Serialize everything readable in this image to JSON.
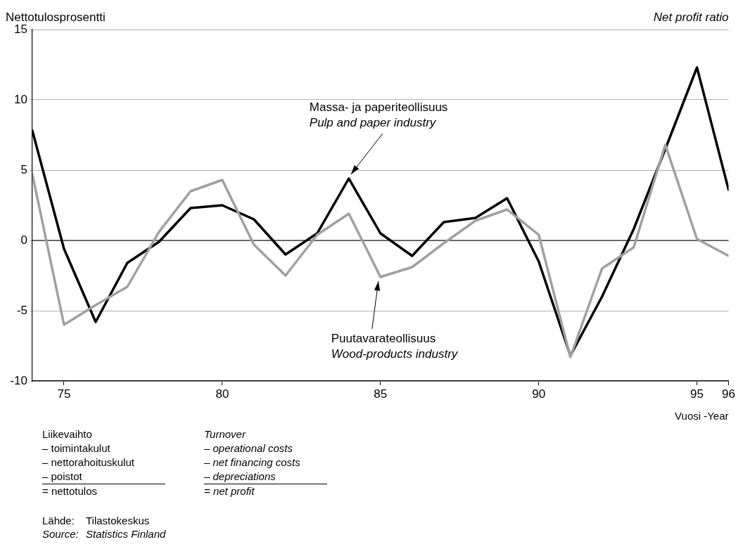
{
  "chart_data": {
    "type": "line",
    "ylabel": "Nettotulosprosentti",
    "xlabel": "Vuosi -Year",
    "x": [
      1974,
      1975,
      1976,
      1977,
      1978,
      1979,
      1980,
      1981,
      1982,
      1983,
      1984,
      1985,
      1986,
      1987,
      1988,
      1989,
      1990,
      1991,
      1992,
      1993,
      1994,
      1995,
      1996
    ],
    "series": [
      {
        "color": "#a0a0a0",
        "values": [
          4.7,
          -6.0,
          -4.6,
          -3.3,
          0.6,
          3.5,
          4.3,
          -0.3,
          -2.5,
          0.4,
          1.9,
          -2.6,
          -1.9,
          -0.2,
          1.4,
          2.2,
          0.4,
          -8.3,
          -2.0,
          -0.5,
          6.8,
          0.1,
          -1.1
        ]
      },
      {
        "color": "#000000",
        "values": [
          7.8,
          -0.6,
          -5.8,
          -1.6,
          -0.1,
          2.3,
          2.5,
          1.5,
          -1.0,
          0.5,
          4.4,
          0.5,
          -1.1,
          1.3,
          1.6,
          3.0,
          -1.5,
          -8.2,
          -4.0,
          0.8,
          6.5,
          12.3,
          3.6
        ]
      }
    ],
    "xlim": [
      1974,
      1996
    ],
    "xticks": [
      {
        "value": 1975,
        "label": "75"
      },
      {
        "value": 1980,
        "label": "80"
      },
      {
        "value": 1985,
        "label": "85"
      },
      {
        "value": 1990,
        "label": "90"
      },
      {
        "value": 1995,
        "label": "95"
      },
      {
        "value": 1996,
        "label": "96"
      }
    ],
    "ylim": [
      -10,
      15
    ],
    "yticks": [
      -10,
      -5,
      0,
      5,
      10,
      15
    ],
    "grid": "y",
    "legend": false,
    "marker": "none",
    "line_style": "solid",
    "ref_lines": [
      {
        "axis": "y",
        "value": 0,
        "color": "#000000"
      }
    ],
    "annotations": [
      {
        "text": "Massa- ja paperiteollisuus\nPulp and paper industry",
        "x": 1984,
        "y": 4.4
      },
      {
        "text": "Puutavarateollisuus\nWood-products industry",
        "x": 1985,
        "y": -2.6
      },
      "Net profit ratio",
      "Liikevaihto\n– toimintakulut\n– nettorahoituskulut\n– poistot\n= nettotulos",
      "Turnover\n– operational costs\n– net financing costs\n– depreciations\n= net profit",
      "Lähde:\tTilastokeskus",
      "Source:\tStatistics Finland"
    ]
  }
}
